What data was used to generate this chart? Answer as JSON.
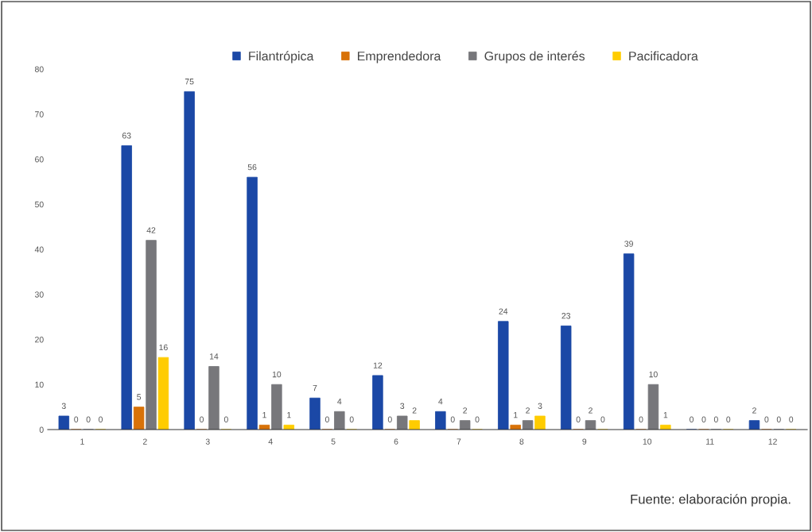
{
  "chart_data": {
    "type": "bar",
    "categories": [
      "1",
      "2",
      "3",
      "4",
      "5",
      "6",
      "7",
      "8",
      "9",
      "10",
      "11",
      "12"
    ],
    "series": [
      {
        "name": "Filantrópica",
        "color": "#1b48a6",
        "values": [
          3,
          63,
          75,
          56,
          7,
          12,
          4,
          24,
          23,
          39,
          0,
          2
        ]
      },
      {
        "name": "Emprendedora",
        "color": "#d87208",
        "values": [
          0,
          5,
          0,
          1,
          0,
          0,
          0,
          1,
          0,
          0,
          0,
          0
        ]
      },
      {
        "name": "Grupos de interés",
        "color": "#77777b",
        "values": [
          0,
          42,
          14,
          10,
          4,
          3,
          2,
          2,
          2,
          10,
          0,
          0
        ]
      },
      {
        "name": "Pacificadora",
        "color": "#ffcc00",
        "values": [
          0,
          16,
          0,
          1,
          0,
          2,
          0,
          3,
          0,
          1,
          0,
          0
        ]
      }
    ],
    "ylim": [
      0,
      80
    ],
    "yticks": [
      0,
      10,
      20,
      30,
      40,
      50,
      60,
      70,
      80
    ],
    "grid": false,
    "legend": "top",
    "data_labels": true,
    "annotations": [
      "Fuente: elaboración propia."
    ]
  }
}
